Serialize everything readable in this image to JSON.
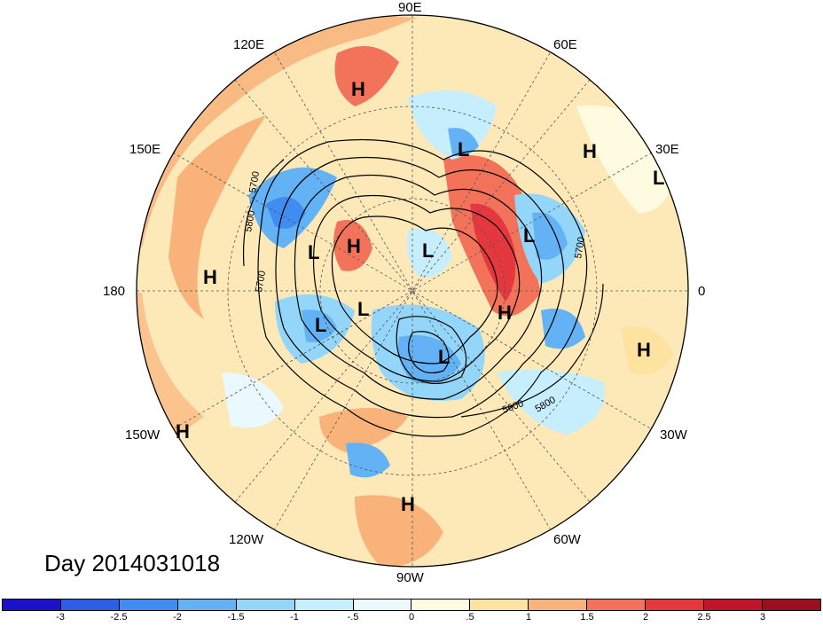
{
  "map": {
    "day_label": "Day 2014031018",
    "longitude_labels": {
      "lon_90e": "90E",
      "lon_120e": "120E",
      "lon_60e": "60E",
      "lon_150e": "150E",
      "lon_30e": "30E",
      "lon_180": "180",
      "lon_0": "0",
      "lon_150w": "150W",
      "lon_30w": "30W",
      "lon_120w": "120W",
      "lon_60w": "60W",
      "lon_90w": "90W"
    },
    "contour_labels": [
      "5700",
      "5800",
      "5700",
      "5600",
      "5800",
      "5700"
    ],
    "pressure_centers": [
      "H",
      "H",
      "L",
      "H",
      "L",
      "H",
      "L",
      "L",
      "L",
      "L",
      "H",
      "L",
      "L",
      "H",
      "H",
      "H"
    ],
    "projection": "polar stereographic (Northern Hemisphere)"
  },
  "colorbar": {
    "tick_labels": [
      "-3",
      "-2.5",
      "-2",
      "-1.5",
      "-1",
      "-.5",
      "0",
      ".5",
      "1",
      "1.5",
      "2",
      "2.5",
      "3"
    ],
    "colors": [
      "#1a12c8",
      "#2f5ee6",
      "#3f8df0",
      "#62b2f5",
      "#93d6fa",
      "#c6eefc",
      "#e9f9fd",
      "#fffbe0",
      "#fde2a0",
      "#f9b27a",
      "#f2735a",
      "#e4383e",
      "#c0142a",
      "#9b0e1e"
    ]
  }
}
